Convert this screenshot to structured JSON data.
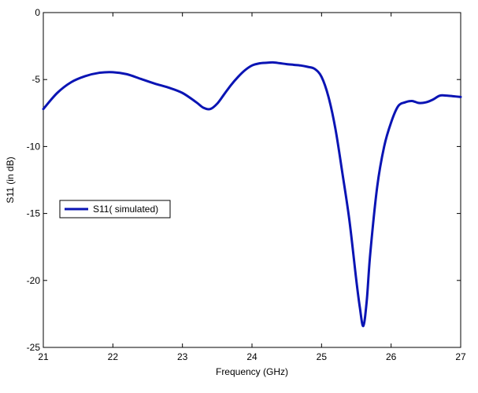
{
  "chart_data": {
    "type": "line",
    "title": "",
    "xlabel": "Frequency (GHz)",
    "ylabel": "S11  (in dB)",
    "xlim": [
      21,
      27
    ],
    "ylim": [
      -25,
      0
    ],
    "xticks": [
      21,
      22,
      23,
      24,
      25,
      26,
      27
    ],
    "yticks": [
      0,
      -5,
      -10,
      -15,
      -20,
      -25
    ],
    "grid": false,
    "legend_position": "center-left",
    "series": [
      {
        "name": "S11( simulated)",
        "color": "#0a14b4",
        "x": [
          21.0,
          21.2,
          21.4,
          21.6,
          21.8,
          22.0,
          22.2,
          22.4,
          22.6,
          22.8,
          23.0,
          23.2,
          23.3,
          23.4,
          23.5,
          23.6,
          23.7,
          23.8,
          23.9,
          24.0,
          24.1,
          24.2,
          24.3,
          24.4,
          24.5,
          24.6,
          24.7,
          24.8,
          24.9,
          25.0,
          25.1,
          25.2,
          25.3,
          25.4,
          25.5,
          25.55,
          25.6,
          25.65,
          25.7,
          25.8,
          25.9,
          26.0,
          26.1,
          26.2,
          26.3,
          26.4,
          26.5,
          26.6,
          26.7,
          26.8,
          26.9,
          27.0
        ],
        "y": [
          -7.2,
          -6.0,
          -5.2,
          -4.75,
          -4.5,
          -4.45,
          -4.6,
          -4.95,
          -5.3,
          -5.6,
          -6.0,
          -6.7,
          -7.1,
          -7.2,
          -6.8,
          -6.1,
          -5.4,
          -4.8,
          -4.3,
          -3.95,
          -3.8,
          -3.75,
          -3.72,
          -3.78,
          -3.85,
          -3.9,
          -3.95,
          -4.05,
          -4.2,
          -4.8,
          -6.3,
          -8.7,
          -12.0,
          -15.5,
          -20.0,
          -22.0,
          -23.4,
          -21.5,
          -18.0,
          -13.0,
          -10.0,
          -8.2,
          -7.0,
          -6.7,
          -6.6,
          -6.75,
          -6.7,
          -6.5,
          -6.2,
          -6.2,
          -6.25,
          -6.3
        ]
      }
    ]
  }
}
